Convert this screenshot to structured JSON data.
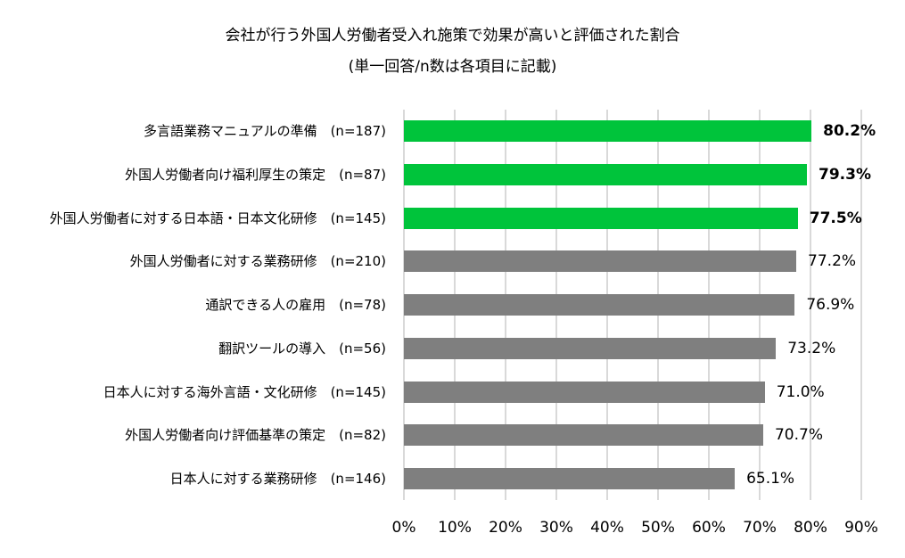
{
  "chart_data": {
    "type": "bar",
    "orientation": "horizontal",
    "title": "会社が行う外国人労働者受入れ施策で効果が高いと評価された割合",
    "subtitle": "(単一回答/n数は各項目に記載)",
    "xlabel": "",
    "ylabel": "",
    "xlim": [
      0,
      90
    ],
    "x_ticks": [
      "0%",
      "10%",
      "20%",
      "30%",
      "40%",
      "50%",
      "60%",
      "70%",
      "80%",
      "90%"
    ],
    "grid": true,
    "legend": null,
    "categories": [
      "多言語業務マニュアルの準備　(n=187)",
      "外国人労働者向け福利厚生の策定　(n=87)",
      "外国人労働者に対する日本語・日本文化研修　(n=145)",
      "外国人労働者に対する業務研修　(n=210)",
      "通訳できる人の雇用　(n=78)",
      "翻訳ツールの導入　(n=56)",
      "日本人に対する海外言語・文化研修　(n=145)",
      "外国人労働者向け評価基準の策定　(n=82)",
      "日本人に対する業務研修　(n=146)"
    ],
    "values": [
      80.2,
      79.3,
      77.5,
      77.2,
      76.9,
      73.2,
      71.0,
      70.7,
      65.1
    ],
    "value_labels": [
      "80.2%",
      "79.3%",
      "77.5%",
      "77.2%",
      "76.9%",
      "73.2%",
      "71.0%",
      "70.7%",
      "65.1%"
    ],
    "highlighted": [
      true,
      true,
      true,
      false,
      false,
      false,
      false,
      false,
      false
    ],
    "colors": {
      "highlight": "#00c43b",
      "default": "#7f7f7f",
      "grid": "#d9d9d9"
    }
  }
}
